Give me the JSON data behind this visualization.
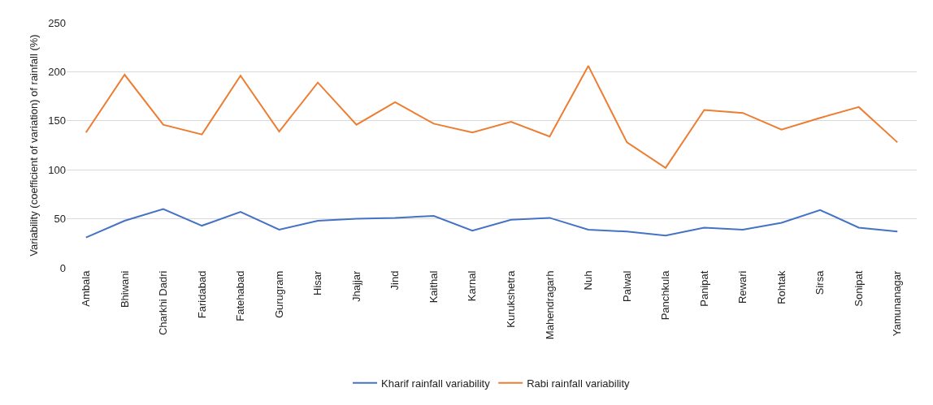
{
  "chart_data": {
    "type": "line",
    "ylabel": "Variability (coefficient of variation) of rainfall (%)",
    "categories": [
      "Ambala",
      "Bhiwani",
      "Charkhi Dadri",
      "Faridabad",
      "Fatehabad",
      "Gurugram",
      "Hisar",
      "Jhajjar",
      "Jind",
      "Kaithal",
      "Karnal",
      "Kurukshetra",
      "Mahendragarh",
      "Nuh",
      "Palwal",
      "Panchkula",
      "Panipat",
      "Rewari",
      "Rohtak",
      "Sirsa",
      "Sonipat",
      "Yamunanagar"
    ],
    "series": [
      {
        "name": "Kharif rainfall variability",
        "color": "#4472c4",
        "values": [
          31,
          48,
          60,
          43,
          57,
          39,
          48,
          50,
          51,
          53,
          38,
          49,
          51,
          39,
          37,
          33,
          41,
          39,
          46,
          59,
          41,
          37
        ]
      },
      {
        "name": "Rabi rainfall variability",
        "color": "#ed7d31",
        "values": [
          138,
          197,
          146,
          136,
          196,
          139,
          189,
          146,
          169,
          147,
          138,
          149,
          134,
          206,
          128,
          102,
          161,
          158,
          141,
          153,
          164,
          128
        ]
      }
    ],
    "ylim": [
      0,
      250
    ],
    "yticks": [
      0,
      50,
      100,
      150,
      200,
      250
    ],
    "grid": "y",
    "legend": "bottom",
    "marker": "none",
    "line_style": "solid"
  }
}
